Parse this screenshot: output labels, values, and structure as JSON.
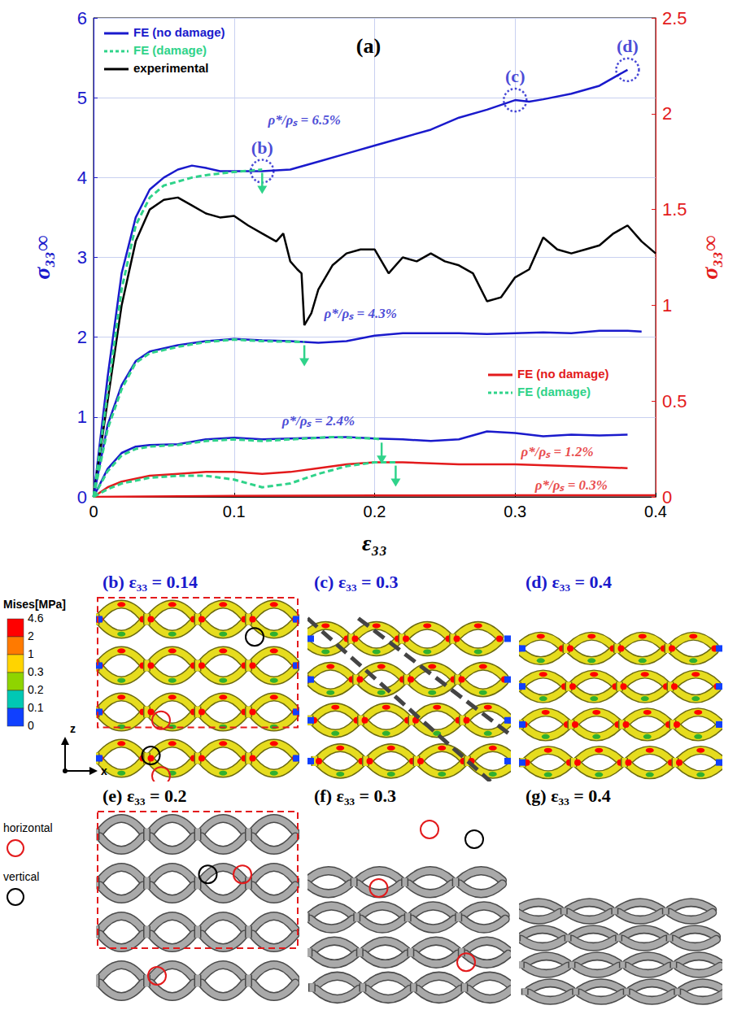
{
  "chart_data": {
    "type": "line",
    "title": "(a)",
    "x_label": "ε₃₃",
    "y_label": "σ₃₃∞",
    "y2_label": "σ₃₃∞",
    "xlim": [
      0,
      0.4
    ],
    "xticks": [
      0,
      0.1,
      0.2,
      0.3,
      0.4
    ],
    "ylim": [
      0,
      6
    ],
    "yticks": [
      0,
      1,
      2,
      3,
      4,
      5,
      6
    ],
    "y2lim": [
      0,
      2.5
    ],
    "y2ticks": [
      0,
      0.5,
      1,
      1.5,
      2,
      2.5
    ],
    "grid": true,
    "legend": "upper left",
    "series": [
      {
        "name": "FE (no damage)",
        "color": "#1a1acc",
        "line_style": "solid",
        "axis": "y",
        "x": [
          0,
          0.01,
          0.02,
          0.03,
          0.04,
          0.05,
          0.06,
          0.07,
          0.08,
          0.09,
          0.1,
          0.12,
          0.14,
          0.16,
          0.18,
          0.2,
          0.22,
          0.24,
          0.26,
          0.28,
          0.3,
          0.31,
          0.32,
          0.34,
          0.36,
          0.38
        ],
        "values": [
          0,
          1.5,
          2.8,
          3.5,
          3.85,
          4.0,
          4.1,
          4.15,
          4.12,
          4.08,
          4.08,
          4.08,
          4.1,
          4.2,
          4.3,
          4.4,
          4.5,
          4.6,
          4.75,
          4.85,
          4.97,
          4.95,
          4.98,
          5.05,
          5.15,
          5.35
        ]
      },
      {
        "name": "FE (damage)",
        "color": "#2fd38a",
        "line_style": "dotted",
        "axis": "y",
        "x": [
          0,
          0.01,
          0.02,
          0.03,
          0.04,
          0.05,
          0.06,
          0.07,
          0.08,
          0.1,
          0.12
        ],
        "values": [
          0,
          1.3,
          2.6,
          3.4,
          3.75,
          3.9,
          3.95,
          4.0,
          4.03,
          4.07,
          4.1
        ]
      },
      {
        "name": "experimental",
        "color": "#000000",
        "line_style": "solid",
        "axis": "y",
        "x": [
          0,
          0.01,
          0.02,
          0.03,
          0.04,
          0.05,
          0.06,
          0.07,
          0.08,
          0.09,
          0.1,
          0.11,
          0.12,
          0.13,
          0.135,
          0.14,
          0.145,
          0.148,
          0.15,
          0.155,
          0.16,
          0.17,
          0.18,
          0.19,
          0.2,
          0.21,
          0.22,
          0.23,
          0.24,
          0.25,
          0.26,
          0.27,
          0.28,
          0.29,
          0.3,
          0.31,
          0.32,
          0.33,
          0.34,
          0.35,
          0.36,
          0.37,
          0.38,
          0.39,
          0.4
        ],
        "values": [
          0,
          1.2,
          2.4,
          3.2,
          3.6,
          3.72,
          3.75,
          3.65,
          3.55,
          3.5,
          3.52,
          3.4,
          3.3,
          3.2,
          3.3,
          2.95,
          2.85,
          2.8,
          2.15,
          2.3,
          2.6,
          2.9,
          3.05,
          3.1,
          3.1,
          2.8,
          3.0,
          2.95,
          3.05,
          2.95,
          2.9,
          2.8,
          2.45,
          2.5,
          2.75,
          2.85,
          3.25,
          3.1,
          3.05,
          3.1,
          3.15,
          3.3,
          3.4,
          3.2,
          3.05
        ]
      },
      {
        "name": "FE (no damage)",
        "color": "#1a1acc",
        "line_style": "solid",
        "axis": "y",
        "x": [
          0,
          0.01,
          0.02,
          0.03,
          0.04,
          0.06,
          0.08,
          0.1,
          0.12,
          0.14,
          0.16,
          0.18,
          0.2,
          0.22,
          0.24,
          0.26,
          0.28,
          0.3,
          0.32,
          0.34,
          0.36,
          0.38,
          0.39
        ],
        "values": [
          0,
          0.9,
          1.4,
          1.7,
          1.82,
          1.9,
          1.95,
          1.98,
          1.96,
          1.95,
          1.93,
          1.95,
          2.02,
          2.05,
          2.05,
          2.05,
          2.04,
          2.05,
          2.06,
          2.05,
          2.08,
          2.08,
          2.07
        ]
      },
      {
        "name": "FE (damage)",
        "color": "#2fd38a",
        "line_style": "dotted",
        "axis": "y",
        "x": [
          0,
          0.01,
          0.02,
          0.03,
          0.04,
          0.06,
          0.08,
          0.1,
          0.12,
          0.15
        ],
        "values": [
          0,
          0.85,
          1.35,
          1.68,
          1.8,
          1.88,
          1.94,
          1.97,
          1.95,
          1.94
        ]
      },
      {
        "name": "FE (no damage)",
        "color": "#1a1acc",
        "line_style": "solid",
        "axis": "y",
        "x": [
          0,
          0.01,
          0.02,
          0.03,
          0.04,
          0.06,
          0.08,
          0.1,
          0.12,
          0.14,
          0.16,
          0.18,
          0.2,
          0.22,
          0.24,
          0.26,
          0.28,
          0.3,
          0.32,
          0.34,
          0.36,
          0.38
        ],
        "values": [
          0,
          0.35,
          0.55,
          0.63,
          0.65,
          0.66,
          0.72,
          0.74,
          0.72,
          0.73,
          0.74,
          0.75,
          0.73,
          0.72,
          0.7,
          0.72,
          0.82,
          0.8,
          0.76,
          0.78,
          0.77,
          0.78
        ]
      },
      {
        "name": "FE (damage)",
        "color": "#2fd38a",
        "line_style": "dotted",
        "axis": "y",
        "x": [
          0,
          0.01,
          0.02,
          0.03,
          0.04,
          0.06,
          0.08,
          0.1,
          0.12,
          0.14,
          0.17,
          0.2,
          0.205
        ],
        "values": [
          0,
          0.32,
          0.52,
          0.6,
          0.63,
          0.65,
          0.7,
          0.72,
          0.7,
          0.72,
          0.75,
          0.73,
          0.72
        ]
      },
      {
        "name": "FE (no damage)",
        "color": "#e31a1c",
        "line_style": "solid",
        "axis": "y2",
        "x": [
          0,
          0.01,
          0.02,
          0.04,
          0.06,
          0.08,
          0.1,
          0.12,
          0.14,
          0.16,
          0.18,
          0.2,
          0.22,
          0.26,
          0.3,
          0.34,
          0.38
        ],
        "values": [
          0,
          0.05,
          0.08,
          0.11,
          0.12,
          0.13,
          0.13,
          0.12,
          0.13,
          0.15,
          0.17,
          0.18,
          0.18,
          0.17,
          0.17,
          0.16,
          0.15
        ]
      },
      {
        "name": "FE (damage)",
        "color": "#2fd38a",
        "line_style": "dotted",
        "axis": "y2",
        "x": [
          0,
          0.01,
          0.02,
          0.04,
          0.06,
          0.08,
          0.1,
          0.12,
          0.14,
          0.16,
          0.18,
          0.2,
          0.215
        ],
        "values": [
          0,
          0.04,
          0.07,
          0.1,
          0.11,
          0.11,
          0.09,
          0.05,
          0.07,
          0.12,
          0.16,
          0.18,
          0.18
        ]
      },
      {
        "name": "FE (no damage)",
        "color": "#e31a1c",
        "line_style": "solid",
        "axis": "y2",
        "x": [
          0,
          0.1,
          0.2,
          0.3,
          0.4
        ],
        "values": [
          0,
          0.005,
          0.007,
          0.008,
          0.008
        ]
      }
    ],
    "annotations": [
      {
        "text": "ρ*/ρₛ = 6.5%",
        "x": 0.15,
        "y": 4.72,
        "axis": "y",
        "color": "#1a1acc"
      },
      {
        "text": "ρ*/ρₛ = 4.3%",
        "x": 0.19,
        "y": 2.3,
        "axis": "y",
        "color": "#1a1acc"
      },
      {
        "text": "ρ*/ρₛ = 2.4%",
        "x": 0.16,
        "y": 0.95,
        "axis": "y",
        "color": "#1a1acc"
      },
      {
        "text": "ρ*/ρₛ = 1.2%",
        "x": 0.33,
        "y": 0.235,
        "axis": "y2",
        "color": "#e31a1c"
      },
      {
        "text": "ρ*/ρₛ = 0.3%",
        "x": 0.34,
        "y": 0.06,
        "axis": "y2",
        "color": "#e31a1c"
      }
    ],
    "markers": [
      {
        "label": "(b)",
        "x": 0.12,
        "y": 4.08,
        "color": "#1a1acc"
      },
      {
        "label": "(c)",
        "x": 0.3,
        "y": 4.97,
        "color": "#1a1acc"
      },
      {
        "label": "(d)",
        "x": 0.38,
        "y": 5.35,
        "color": "#1a1acc"
      }
    ]
  },
  "panels": {
    "fe_row": {
      "color": "#1a1acc",
      "titles": [
        {
          "letter": "(b)",
          "label": "ε₃₃ = 0.14"
        },
        {
          "letter": "(c)",
          "label": "ε₃₃ = 0.3"
        },
        {
          "letter": "(d)",
          "label": "ε₃₃ = 0.4"
        }
      ]
    },
    "ct_row": {
      "color": "#000000",
      "titles": [
        {
          "letter": "(e)",
          "label": "ε₃₃ = 0.2"
        },
        {
          "letter": "(f)",
          "label": "ε₃₃ = 0.3"
        },
        {
          "letter": "(g)",
          "label": "ε₃₃ = 0.4"
        }
      ]
    },
    "colorbar": {
      "title": "Mises[MPa]",
      "ticks": [
        4.6,
        2,
        1,
        0.3,
        0.2,
        0.1,
        0
      ],
      "colors": [
        "#ff0000",
        "#ff7a00",
        "#ffd400",
        "#8fd400",
        "#00c8b4",
        "#1040ff"
      ]
    },
    "axes_triad": [
      "z",
      "x"
    ],
    "circle_legend": [
      {
        "label": "horizontal",
        "color": "#e31a1c"
      },
      {
        "label": "vertical",
        "color": "#000000"
      }
    ]
  }
}
